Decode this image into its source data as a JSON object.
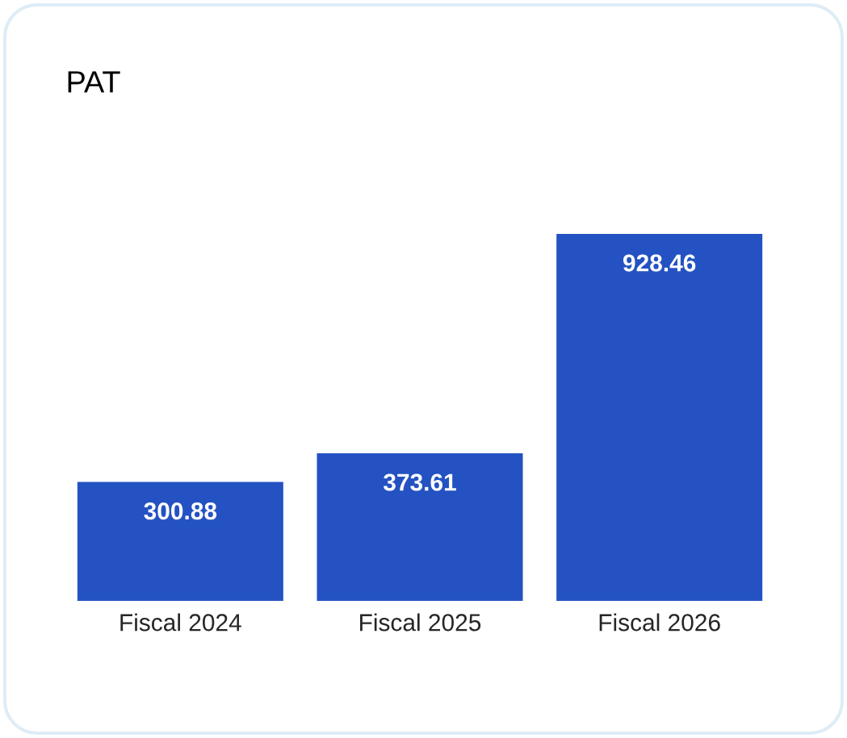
{
  "chart_data": {
    "type": "bar",
    "title": "PAT",
    "categories": [
      "Fiscal 2024",
      "Fiscal 2025",
      "Fiscal 2026"
    ],
    "values": [
      300.88,
      373.61,
      928.46
    ],
    "color": "#2452c2",
    "data_labels": true
  }
}
